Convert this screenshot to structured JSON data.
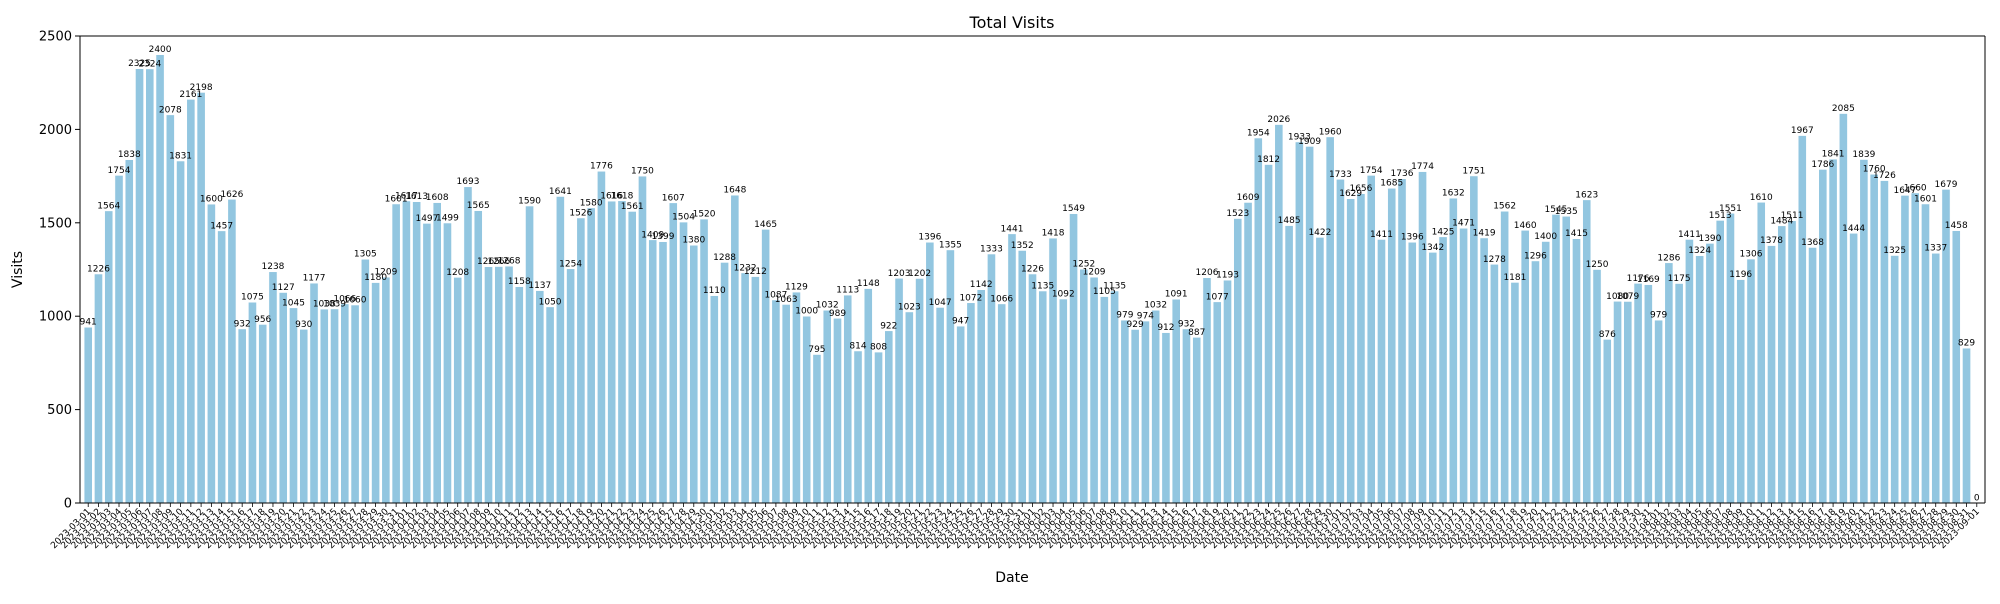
{
  "chart_data": {
    "type": "bar",
    "title": "Total Visits",
    "xlabel": "Date",
    "ylabel": "Visits",
    "ylim": [
      0,
      2500
    ],
    "yticks": [
      0,
      500,
      1000,
      1500,
      2000,
      2500
    ],
    "grid": false,
    "bar_color": "#92c6e0",
    "edge_color": "#ffffff",
    "categories": [
      "2023-03-01",
      "2023-03-02",
      "2023-03-03",
      "2023-03-04",
      "2023-03-05",
      "2023-03-06",
      "2023-03-07",
      "2023-03-08",
      "2023-03-09",
      "2023-03-10",
      "2023-03-11",
      "2023-03-12",
      "2023-03-13",
      "2023-03-14",
      "2023-03-15",
      "2023-03-16",
      "2023-03-17",
      "2023-03-18",
      "2023-03-19",
      "2023-03-20",
      "2023-03-21",
      "2023-03-22",
      "2023-03-23",
      "2023-03-24",
      "2023-03-25",
      "2023-03-26",
      "2023-03-27",
      "2023-03-28",
      "2023-03-29",
      "2023-03-30",
      "2023-03-31",
      "2023-04-01",
      "2023-04-02",
      "2023-04-03",
      "2023-04-04",
      "2023-04-05",
      "2023-04-06",
      "2023-04-07",
      "2023-04-08",
      "2023-04-09",
      "2023-04-10",
      "2023-04-11",
      "2023-04-12",
      "2023-04-13",
      "2023-04-14",
      "2023-04-15",
      "2023-04-16",
      "2023-04-17",
      "2023-04-18",
      "2023-04-19",
      "2023-04-20",
      "2023-04-21",
      "2023-04-22",
      "2023-04-23",
      "2023-04-24",
      "2023-04-25",
      "2023-04-26",
      "2023-04-27",
      "2023-04-28",
      "2023-04-29",
      "2023-04-30",
      "2023-05-01",
      "2023-05-02",
      "2023-05-03",
      "2023-05-04",
      "2023-05-05",
      "2023-05-06",
      "2023-05-07",
      "2023-05-08",
      "2023-05-09",
      "2023-05-10",
      "2023-05-11",
      "2023-05-12",
      "2023-05-13",
      "2023-05-14",
      "2023-05-15",
      "2023-05-16",
      "2023-05-17",
      "2023-05-18",
      "2023-05-19",
      "2023-05-20",
      "2023-05-21",
      "2023-05-22",
      "2023-05-23",
      "2023-05-24",
      "2023-05-25",
      "2023-05-26",
      "2023-05-27",
      "2023-05-28",
      "2023-05-29",
      "2023-05-30",
      "2023-05-31",
      "2023-06-01",
      "2023-06-02",
      "2023-06-03",
      "2023-06-04",
      "2023-06-05",
      "2023-06-06",
      "2023-06-07",
      "2023-06-08",
      "2023-06-09",
      "2023-06-10",
      "2023-06-11",
      "2023-06-12",
      "2023-06-13",
      "2023-06-14",
      "2023-06-15",
      "2023-06-16",
      "2023-06-17",
      "2023-06-18",
      "2023-06-19",
      "2023-06-20",
      "2023-06-21",
      "2023-06-22",
      "2023-06-23",
      "2023-06-24",
      "2023-06-25",
      "2023-06-26",
      "2023-06-27",
      "2023-06-28",
      "2023-06-29",
      "2023-06-30",
      "2023-07-01",
      "2023-07-02",
      "2023-07-03",
      "2023-07-04",
      "2023-07-05",
      "2023-07-06",
      "2023-07-07",
      "2023-07-08",
      "2023-07-09",
      "2023-07-10",
      "2023-07-11",
      "2023-07-12",
      "2023-07-13",
      "2023-07-14",
      "2023-07-15",
      "2023-07-16",
      "2023-07-17",
      "2023-07-18",
      "2023-07-19",
      "2023-07-20",
      "2023-07-21",
      "2023-07-22",
      "2023-07-23",
      "2023-07-24",
      "2023-07-25",
      "2023-07-26",
      "2023-07-27",
      "2023-07-28",
      "2023-07-29",
      "2023-07-30",
      "2023-07-31",
      "2023-08-01",
      "2023-08-02",
      "2023-08-03",
      "2023-08-04",
      "2023-08-05",
      "2023-08-06",
      "2023-08-07",
      "2023-08-08",
      "2023-08-09",
      "2023-08-10",
      "2023-08-11",
      "2023-08-12",
      "2023-08-13",
      "2023-08-14",
      "2023-08-15",
      "2023-08-16",
      "2023-08-17",
      "2023-08-18",
      "2023-08-19",
      "2023-08-20",
      "2023-08-21",
      "2023-08-22",
      "2023-08-23",
      "2023-08-24",
      "2023-08-25",
      "2023-08-26",
      "2023-08-27",
      "2023-08-28",
      "2023-08-29",
      "2023-08-30",
      "2023-08-31",
      "2023-09-01"
    ],
    "values": [
      941,
      1226,
      1564,
      1754,
      1838,
      2325,
      2324,
      2400,
      2078,
      1831,
      2161,
      2198,
      1600,
      1457,
      1626,
      932,
      1075,
      956,
      1238,
      1127,
      1045,
      930,
      1177,
      1038,
      1039,
      1066,
      1060,
      1305,
      1180,
      1209,
      1601,
      1617,
      1613,
      1497,
      1608,
      1499,
      1208,
      1693,
      1565,
      1265,
      1266,
      1268,
      1158,
      1590,
      1137,
      1050,
      1641,
      1254,
      1526,
      1580,
      1776,
      1616,
      1618,
      1561,
      1750,
      1409,
      1399,
      1607,
      1504,
      1380,
      1520,
      1110,
      1288,
      1648,
      1232,
      1212,
      1465,
      1087,
      1063,
      1129,
      1000,
      795,
      1032,
      989,
      1113,
      814,
      1148,
      808,
      922,
      1203,
      1023,
      1202,
      1396,
      1047,
      1355,
      947,
      1072,
      1142,
      1333,
      1066,
      1441,
      1352,
      1226,
      1135,
      1418,
      1092,
      1549,
      1252,
      1209,
      1105,
      1135,
      979,
      929,
      974,
      1032,
      912,
      1091,
      932,
      887,
      1206,
      1077,
      1193,
      1523,
      1609,
      1954,
      1812,
      2026,
      1485,
      1933,
      1909,
      1422,
      1960,
      1733,
      1629,
      1656,
      1754,
      1411,
      1685,
      1736,
      1396,
      1774,
      1342,
      1425,
      1632,
      1471,
      1751,
      1419,
      1278,
      1562,
      1181,
      1460,
      1296,
      1400,
      1545,
      1535,
      1415,
      1623,
      1250,
      876,
      1080,
      1079,
      1176,
      1169,
      979,
      1286,
      1175,
      1411,
      1324,
      1390,
      1513,
      1551,
      1196,
      1306,
      1610,
      1378,
      1484,
      1511,
      1967,
      1368,
      1786,
      1841,
      2085,
      1444,
      1839,
      1760,
      1726,
      1325,
      1647,
      1660,
      1601,
      1337,
      1679,
      1458,
      829,
      0
    ]
  }
}
